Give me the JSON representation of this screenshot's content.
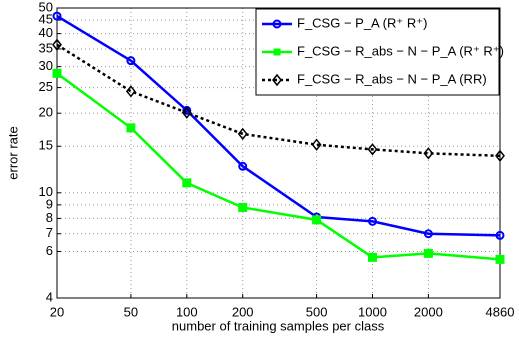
{
  "chart_data": {
    "type": "line",
    "x_label": "number of training samples per class",
    "y_label": "error rate",
    "x": [
      20,
      50,
      100,
      200,
      500,
      1000,
      2000,
      4860
    ],
    "xlim": [
      20,
      4860
    ],
    "xticks": [
      20,
      50,
      100,
      200,
      500,
      1000,
      2000,
      4860
    ],
    "xscale": "log",
    "ylim": [
      4,
      50
    ],
    "yticks": [
      4,
      6,
      7,
      8,
      9,
      10,
      15,
      20,
      25,
      30,
      35,
      40,
      45,
      50
    ],
    "yscale": "log",
    "grid": true,
    "legend": "upper right",
    "series": [
      {
        "name": "F_CSG − P_A (R⁺ R⁺)",
        "color": "#0000ff",
        "marker": "circle",
        "dash": "solid",
        "values": [
          46.6,
          31.6,
          20.5,
          12.6,
          8.1,
          7.8,
          7.0,
          6.9
        ]
      },
      {
        "name": "F_CSG − R_abs − N − P_A (R⁺ R⁺)",
        "color": "#00ff00",
        "marker": "square",
        "dash": "solid",
        "values": [
          28.3,
          17.6,
          10.9,
          8.8,
          7.9,
          5.7,
          5.9,
          5.6
        ]
      },
      {
        "name": "F_CSG − R_abs − N − P_A (RR)",
        "color": "#000000",
        "marker": "diamond",
        "dash": "dotted",
        "values": [
          36.3,
          24.2,
          20.1,
          16.7,
          15.2,
          14.6,
          14.1,
          13.8
        ]
      }
    ]
  }
}
